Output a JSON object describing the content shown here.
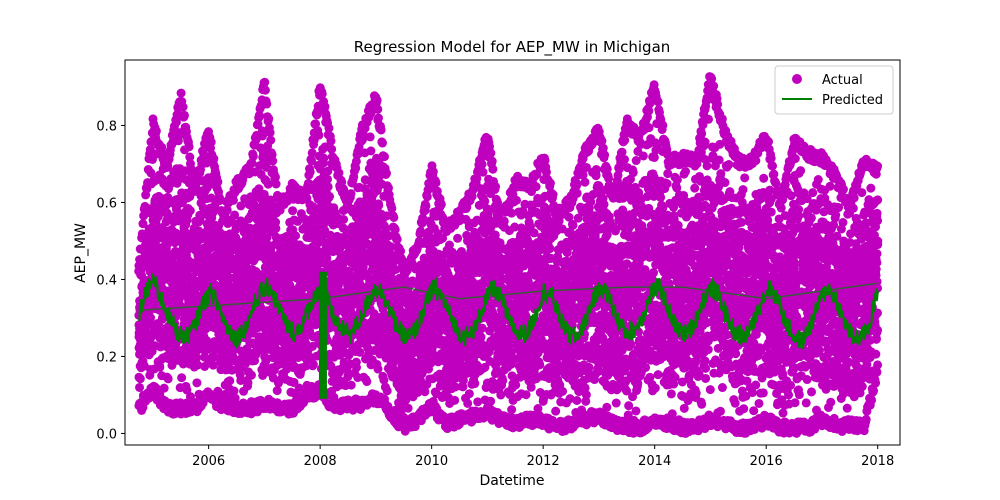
{
  "chart_data": {
    "type": "scatter",
    "title": "Regression Model for AEP_MW in Michigan",
    "xlabel": "Datetime",
    "ylabel": "AEP_MW",
    "xlim": [
      2004.5,
      2018.4
    ],
    "ylim": [
      -0.03,
      0.97
    ],
    "xticks": [
      "2006",
      "2008",
      "2010",
      "2012",
      "2014",
      "2016",
      "2018"
    ],
    "yticks": [
      "0.0",
      "0.2",
      "0.4",
      "0.6",
      "0.8"
    ],
    "legend": {
      "position": "top-right"
    },
    "colors": {
      "actual": "#bf00bf",
      "predicted": "#008000"
    },
    "series": [
      {
        "name": "Actual",
        "kind": "scatter",
        "envelope": {
          "x": [
            2004.75,
            2005.0,
            2005.25,
            2005.5,
            2005.75,
            2006.0,
            2006.25,
            2006.5,
            2006.75,
            2007.0,
            2007.25,
            2007.5,
            2007.75,
            2008.0,
            2008.25,
            2008.5,
            2008.75,
            2009.0,
            2009.25,
            2009.5,
            2009.75,
            2010.0,
            2010.25,
            2010.5,
            2010.75,
            2011.0,
            2011.25,
            2011.5,
            2011.75,
            2012.0,
            2012.25,
            2012.5,
            2012.75,
            2013.0,
            2013.25,
            2013.5,
            2013.75,
            2014.0,
            2014.25,
            2014.5,
            2014.75,
            2015.0,
            2015.25,
            2015.5,
            2015.75,
            2016.0,
            2016.25,
            2016.5,
            2016.75,
            2017.0,
            2017.25,
            2017.5,
            2017.75,
            2018.0
          ],
          "upper": [
            0.45,
            0.82,
            0.7,
            0.89,
            0.65,
            0.8,
            0.58,
            0.66,
            0.7,
            0.92,
            0.6,
            0.65,
            0.62,
            0.92,
            0.72,
            0.6,
            0.8,
            0.89,
            0.62,
            0.43,
            0.5,
            0.7,
            0.55,
            0.58,
            0.65,
            0.79,
            0.55,
            0.67,
            0.66,
            0.73,
            0.58,
            0.62,
            0.75,
            0.8,
            0.62,
            0.82,
            0.78,
            0.92,
            0.72,
            0.73,
            0.72,
            0.94,
            0.8,
            0.72,
            0.72,
            0.79,
            0.6,
            0.77,
            0.74,
            0.73,
            0.68,
            0.6,
            0.72,
            0.7
          ],
          "lower": [
            0.05,
            0.1,
            0.05,
            0.05,
            0.05,
            0.08,
            0.06,
            0.05,
            0.05,
            0.06,
            0.05,
            0.05,
            0.08,
            0.1,
            0.05,
            0.06,
            0.06,
            0.08,
            0.04,
            0.0,
            0.02,
            0.06,
            0.01,
            0.02,
            0.03,
            0.04,
            0.02,
            0.01,
            0.02,
            0.02,
            0.0,
            0.01,
            0.02,
            0.03,
            0.01,
            0.0,
            0.0,
            0.02,
            0.01,
            0.0,
            0.0,
            0.02,
            0.01,
            0.0,
            0.0,
            0.02,
            0.0,
            0.0,
            0.0,
            0.02,
            0.0,
            0.01,
            0.0,
            0.15
          ]
        }
      },
      {
        "name": "Predicted",
        "kind": "line",
        "x": [
          2004.75,
          2004.85,
          2005.0,
          2005.15,
          2005.3,
          2005.45,
          2005.6,
          2005.75,
          2005.9,
          2006.05,
          2006.2,
          2006.35,
          2006.5,
          2006.65,
          2006.8,
          2006.95,
          2007.1,
          2007.25,
          2007.4,
          2007.55,
          2007.7,
          2007.85,
          2008.0,
          2008.1,
          2008.25,
          2008.4,
          2008.55,
          2008.7,
          2008.85,
          2009.0,
          2009.15,
          2009.3,
          2009.45,
          2009.6,
          2009.75,
          2009.9,
          2010.05,
          2010.2,
          2010.35,
          2010.5,
          2010.65,
          2010.8,
          2010.95,
          2011.1,
          2011.25,
          2011.4,
          2011.55,
          2011.7,
          2011.85,
          2012.0,
          2012.15,
          2012.3,
          2012.45,
          2012.6,
          2012.75,
          2012.9,
          2013.05,
          2013.2,
          2013.35,
          2013.5,
          2013.65,
          2013.8,
          2013.95,
          2014.1,
          2014.25,
          2014.4,
          2014.55,
          2014.7,
          2014.85,
          2015.0,
          2015.15,
          2015.3,
          2015.45,
          2015.6,
          2015.75,
          2015.9,
          2016.05,
          2016.2,
          2016.35,
          2016.5,
          2016.65,
          2016.8,
          2016.95,
          2017.1,
          2017.25,
          2017.4,
          2017.55,
          2017.7,
          2017.85,
          2018.0
        ],
        "y": [
          0.31,
          0.36,
          0.4,
          0.35,
          0.3,
          0.26,
          0.25,
          0.28,
          0.34,
          0.37,
          0.32,
          0.27,
          0.25,
          0.27,
          0.33,
          0.37,
          0.38,
          0.33,
          0.28,
          0.26,
          0.29,
          0.34,
          0.38,
          0.36,
          0.3,
          0.27,
          0.26,
          0.29,
          0.34,
          0.38,
          0.36,
          0.3,
          0.26,
          0.25,
          0.28,
          0.34,
          0.38,
          0.35,
          0.3,
          0.26,
          0.25,
          0.28,
          0.34,
          0.38,
          0.35,
          0.29,
          0.26,
          0.26,
          0.3,
          0.37,
          0.36,
          0.3,
          0.26,
          0.25,
          0.29,
          0.35,
          0.38,
          0.35,
          0.29,
          0.26,
          0.27,
          0.31,
          0.37,
          0.38,
          0.32,
          0.27,
          0.26,
          0.28,
          0.34,
          0.38,
          0.36,
          0.3,
          0.26,
          0.25,
          0.28,
          0.34,
          0.38,
          0.35,
          0.29,
          0.25,
          0.24,
          0.28,
          0.34,
          0.38,
          0.35,
          0.29,
          0.25,
          0.25,
          0.28,
          0.38
        ]
      }
    ],
    "annotations": {
      "predicted_drop": {
        "x": 2008.05,
        "y_low": 0.09,
        "y_high": 0.42
      },
      "trend_line": {
        "x": [
          2004.75,
          2008.0,
          2009.5,
          2010.5,
          2012.0,
          2013.5,
          2014.5,
          2016.0,
          2018.0
        ],
        "y": [
          0.32,
          0.35,
          0.38,
          0.35,
          0.37,
          0.38,
          0.38,
          0.35,
          0.39
        ]
      }
    }
  }
}
